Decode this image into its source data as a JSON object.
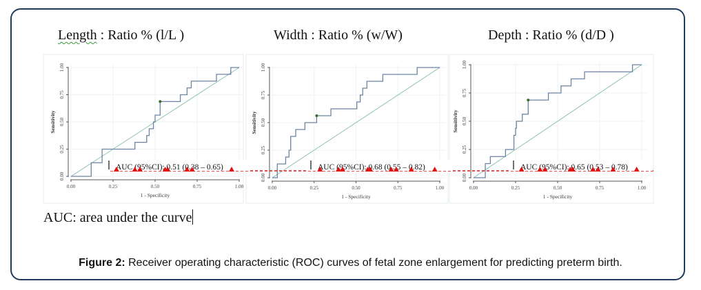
{
  "figure": {
    "note": "AUC: area under the curve",
    "caption_label": "Figure 2:",
    "caption_text": " Receiver operating characteristic (ROC) curves of fetal zone enlargement for predicting preterm birth."
  },
  "colors": {
    "frame": "#1f3b5c",
    "roc_curve": "#6b84a3",
    "reference_line": "#8fbfb5",
    "cutoff_point": "#3d6b2a",
    "red_marker": "#e01010"
  },
  "chart_data": [
    {
      "type": "line",
      "title_prefix": "Length",
      "title": "Length : Ratio % (l/L )",
      "xlabel": "1 - Specificity",
      "ylabel": "Sensitivity",
      "xlim": [
        0,
        1
      ],
      "ylim": [
        0,
        1
      ],
      "xticks": [
        "0.00",
        "0.25",
        "0.50",
        "0.75",
        "1.00"
      ],
      "yticks": [
        "0.00",
        "0.25",
        "0.50",
        "0.75",
        "1.00"
      ],
      "grid": true,
      "annotation": "AUC (95%CI): 0.51 (0.38 – 0.65)",
      "auc": 0.51,
      "ci": [
        0.38,
        0.65
      ],
      "cutoff_point": [
        0.53,
        0.6875
      ],
      "series": [
        {
          "name": "ROC",
          "x": [
            0,
            0.12,
            0.12,
            0.185,
            0.185,
            0.38,
            0.38,
            0.45,
            0.45,
            0.465,
            0.465,
            0.49,
            0.49,
            0.5,
            0.5,
            0.53,
            0.53,
            0.65,
            0.65,
            0.69,
            0.69,
            0.715,
            0.715,
            0.865,
            0.865,
            0.95,
            0.95,
            1
          ],
          "y": [
            0,
            0,
            0.125,
            0.125,
            0.25,
            0.25,
            0.3125,
            0.3125,
            0.375,
            0.375,
            0.4375,
            0.4375,
            0.5,
            0.5,
            0.5625,
            0.5625,
            0.6875,
            0.6875,
            0.75,
            0.75,
            0.8125,
            0.8125,
            0.875,
            0.875,
            0.9375,
            0.9375,
            1,
            1
          ]
        },
        {
          "name": "Reference",
          "x": [
            0,
            1
          ],
          "y": [
            0,
            1
          ]
        }
      ],
      "red_markers_x": [
        0.27,
        0.38,
        0.41,
        0.56,
        0.575,
        0.69,
        0.72,
        0.955
      ]
    },
    {
      "type": "line",
      "title_prefix": "Width",
      "title": "Width : Ratio % (w/W)",
      "xlabel": "1 - Specificity",
      "ylabel": "Sensitivity",
      "xlim": [
        0,
        1
      ],
      "ylim": [
        0,
        1
      ],
      "xticks": [
        "0.00",
        "0.25",
        "0.50",
        "0.75",
        "1.00"
      ],
      "yticks": [
        "0.00",
        "0.25",
        "0.50",
        "0.75",
        "1.00"
      ],
      "grid": true,
      "annotation": "AUC (95%CI): 0.68 (0.55 – 0.82)",
      "auc": 0.68,
      "ci": [
        0.55,
        0.82
      ],
      "cutoff_point": [
        0.265,
        0.5625
      ],
      "series": [
        {
          "name": "ROC",
          "x": [
            0,
            0.03,
            0.03,
            0.08,
            0.08,
            0.1,
            0.1,
            0.11,
            0.11,
            0.14,
            0.14,
            0.195,
            0.195,
            0.265,
            0.265,
            0.35,
            0.35,
            0.505,
            0.505,
            0.525,
            0.525,
            0.54,
            0.54,
            0.565,
            0.565,
            0.66,
            0.66,
            0.865,
            0.865,
            1
          ],
          "y": [
            0,
            0,
            0.125,
            0.125,
            0.1875,
            0.1875,
            0.25,
            0.25,
            0.375,
            0.375,
            0.4375,
            0.4375,
            0.5,
            0.5,
            0.5625,
            0.5625,
            0.625,
            0.625,
            0.6875,
            0.6875,
            0.75,
            0.75,
            0.8125,
            0.8125,
            0.875,
            0.875,
            0.9375,
            0.9375,
            1,
            1
          ]
        },
        {
          "name": "Reference",
          "x": [
            0,
            1
          ],
          "y": [
            0,
            1
          ]
        }
      ],
      "red_markers_x": [
        0.285,
        0.395,
        0.42,
        0.57,
        0.585,
        0.71,
        0.74,
        0.83,
        0.97
      ]
    },
    {
      "type": "line",
      "title_prefix": "Depth",
      "title": "Depth : Ratio % (d/D )",
      "xlabel": "1 - Specificity",
      "ylabel": "Sensitivity",
      "xlim": [
        0,
        1
      ],
      "ylim": [
        0,
        1
      ],
      "xticks": [
        "0.00",
        "0.25",
        "0.50",
        "0.75",
        "1.00"
      ],
      "yticks": [
        "0.00",
        "0.25",
        "0.50",
        "0.75",
        "1.00"
      ],
      "grid": true,
      "annotation": "AUC (95%CI): 0.65 (0.53 – 0.78)",
      "auc": 0.65,
      "ci": [
        0.53,
        0.78
      ],
      "cutoff_point": [
        0.325,
        0.6875
      ],
      "series": [
        {
          "name": "ROC",
          "x": [
            0,
            0.07,
            0.07,
            0.1,
            0.1,
            0.19,
            0.19,
            0.24,
            0.24,
            0.25,
            0.25,
            0.255,
            0.255,
            0.29,
            0.29,
            0.325,
            0.325,
            0.445,
            0.445,
            0.52,
            0.52,
            0.58,
            0.58,
            0.66,
            0.66,
            0.945,
            0.945,
            1
          ],
          "y": [
            0,
            0,
            0.125,
            0.125,
            0.1875,
            0.1875,
            0.25,
            0.25,
            0.375,
            0.375,
            0.4375,
            0.4375,
            0.5,
            0.5,
            0.5625,
            0.5625,
            0.6875,
            0.6875,
            0.75,
            0.75,
            0.8125,
            0.8125,
            0.875,
            0.875,
            0.9375,
            0.9375,
            1,
            1
          ]
        },
        {
          "name": "Reference",
          "x": [
            0,
            1
          ],
          "y": [
            0,
            1
          ]
        }
      ],
      "red_markers_x": [
        0.285,
        0.395,
        0.425,
        0.575,
        0.59,
        0.71,
        0.74,
        0.83,
        0.97
      ]
    }
  ]
}
